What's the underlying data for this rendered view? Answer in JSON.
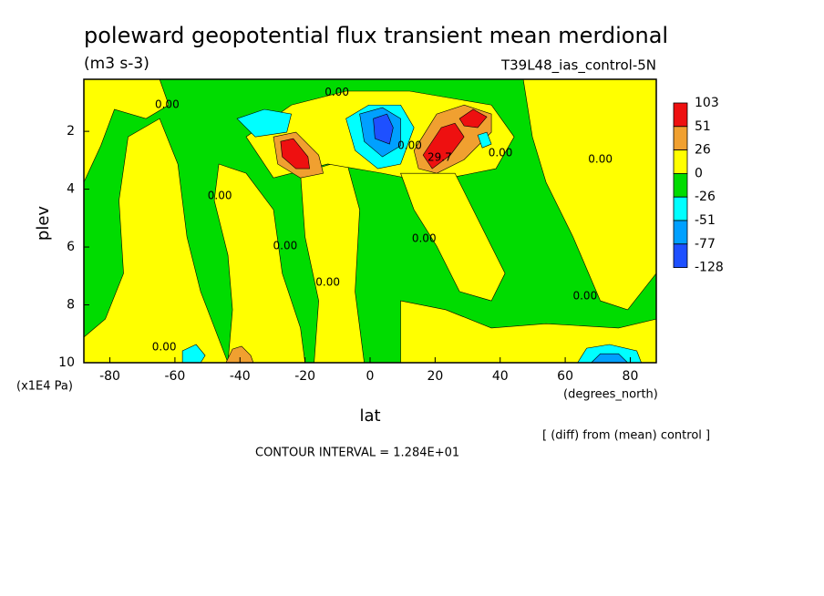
{
  "chart_data": {
    "type": "contour",
    "title": "poleward geopotential flux transient mean merdional",
    "subtitle": "(m3 s-3)",
    "annotation": "T39L48_ias_control-5N",
    "x_label": "lat",
    "x_unit": "(degrees_north)",
    "y_label": "plev",
    "y_unit": "(x1E4 Pa)",
    "note": "[ (diff) from (mean) control ]",
    "contour_interval_text": "CONTOUR INTERVAL = 1.284E+01",
    "xlim": [
      -88,
      88
    ],
    "xticks": [
      -80,
      -60,
      -40,
      -20,
      0,
      20,
      40,
      60,
      80
    ],
    "ylim": [
      10,
      0.2
    ],
    "yticks": [
      2,
      4,
      6,
      8,
      10
    ],
    "colorbar": {
      "levels": [
        103,
        51,
        26,
        0,
        -26,
        -51,
        -77,
        -128
      ],
      "colors": [
        "#ee1010",
        "#f0a030",
        "#ffff00",
        "#00dc00",
        "#00ffff",
        "#00a0ff",
        "#1e50ff"
      ]
    },
    "regions": [
      {
        "level": -26,
        "lat": [
          -88,
          88,
          88,
          -88
        ],
        "plev": [
          0.2,
          0.2,
          10,
          10
        ]
      },
      {
        "level": 0,
        "lat": [
          -88,
          -64.7,
          -61.9,
          -68.9,
          -78.6,
          -82.8,
          -88
        ],
        "plev": [
          0.2,
          0.2,
          1.09,
          1.56,
          1.24,
          2.5,
          3.76
        ]
      },
      {
        "level": 0,
        "lat": [
          -74.4,
          -64.7,
          -59.1,
          -56.3,
          -52.1,
          -43.7,
          -88,
          -88,
          -81.4,
          -75.8,
          -77.2
        ],
        "plev": [
          2.19,
          1.56,
          3.13,
          5.65,
          7.54,
          10,
          10,
          9.12,
          8.49,
          6.91,
          4.39
        ]
      },
      {
        "level": 0,
        "lat": [
          -46.5,
          -38.1,
          -29.7,
          -27.0,
          -21.4,
          -20.0,
          -43.7,
          -42.3,
          -43.7,
          -47.9
        ],
        "plev": [
          3.13,
          3.45,
          4.71,
          6.91,
          8.8,
          10,
          10,
          8.17,
          6.28,
          4.39
        ]
      },
      {
        "level": 0,
        "lat": [
          -21.4,
          -7.4,
          -3.2,
          -4.6,
          -1.8,
          -17.2,
          -15.8,
          -20.0
        ],
        "plev": [
          3.45,
          2.98,
          4.71,
          7.54,
          10,
          10,
          7.86,
          5.65
        ]
      },
      {
        "level": 0,
        "lat": [
          -38.1,
          -24.2,
          -7.4,
          12.2,
          37.3,
          44.3,
          38.7,
          17.7,
          3.8,
          -13.0,
          -29.7
        ],
        "plev": [
          2.19,
          1.09,
          0.61,
          0.61,
          1.09,
          2.19,
          3.29,
          3.76,
          3.45,
          3.13,
          3.61
        ]
      },
      {
        "level": 0,
        "lat": [
          9.4,
          26.1,
          31.7,
          37.3,
          41.5,
          37.3,
          27.5,
          20.5,
          13.5
        ],
        "plev": [
          3.45,
          3.45,
          4.71,
          5.97,
          6.91,
          7.86,
          7.54,
          5.97,
          4.71
        ]
      },
      {
        "level": 0,
        "lat": [
          47.1,
          88,
          88,
          79.2,
          70.8,
          62.4,
          54.1,
          49.9
        ],
        "plev": [
          0.2,
          0.2,
          6.91,
          8.17,
          7.86,
          5.65,
          3.76,
          2.19
        ]
      },
      {
        "level": 0,
        "lat": [
          9.4,
          23.3,
          37.3,
          54.1,
          76.4,
          88,
          88,
          9.4
        ],
        "plev": [
          7.86,
          8.17,
          8.8,
          8.65,
          8.8,
          8.49,
          10,
          10
        ]
      },
      {
        "level": 26,
        "lat": [
          -29.7,
          -22.8,
          -15.8,
          -14.4,
          -21.4,
          -28.4
        ],
        "plev": [
          2.19,
          2.03,
          2.82,
          3.45,
          3.61,
          3.13
        ]
      },
      {
        "level": 51,
        "lat": [
          -27.5,
          -23.6,
          -19.1,
          -18.6,
          -22.8,
          -27.0
        ],
        "plev": [
          2.35,
          2.25,
          2.88,
          3.29,
          3.29,
          2.88
        ]
      },
      {
        "level": 26,
        "lat": [
          13.5,
          20.5,
          28.9,
          37.3,
          37.3,
          28.9,
          20.5,
          14.9
        ],
        "plev": [
          2.66,
          1.4,
          1.09,
          1.4,
          2.03,
          2.98,
          3.45,
          3.29
        ]
      },
      {
        "level": 51,
        "lat": [
          16.3,
          21.9,
          26.1,
          28.9,
          24.7,
          19.1
        ],
        "plev": [
          2.82,
          1.87,
          1.72,
          2.19,
          2.82,
          3.29
        ]
      },
      {
        "level": 51,
        "lat": [
          27.5,
          31.7,
          35.9,
          33.1,
          28.9
        ],
        "plev": [
          1.56,
          1.24,
          1.5,
          1.87,
          1.81
        ]
      },
      {
        "level": 26,
        "lat": [
          -44.3,
          -42.3,
          -39.5,
          -36.7,
          -35.9
        ],
        "plev": [
          10,
          9.53,
          9.43,
          9.75,
          10
        ]
      },
      {
        "level": -51,
        "lat": [
          -40.9,
          -32.5,
          -24.2,
          -25.6,
          -35.3
        ],
        "plev": [
          1.56,
          1.24,
          1.4,
          2.03,
          2.19
        ]
      },
      {
        "level": -51,
        "lat": [
          -7.4,
          -0.4,
          9.4,
          13.5,
          9.4,
          2.4,
          -4.6
        ],
        "plev": [
          1.56,
          1.09,
          1.09,
          1.87,
          3.13,
          3.29,
          2.66
        ]
      },
      {
        "level": -77,
        "lat": [
          -3.2,
          3.8,
          9.4,
          9.4,
          3.8,
          -1.8
        ],
        "plev": [
          1.4,
          1.18,
          1.56,
          2.5,
          2.88,
          2.35
        ]
      },
      {
        "level": -128,
        "lat": [
          1.0,
          5.2,
          7.1,
          6.0,
          1.5
        ],
        "plev": [
          1.56,
          1.4,
          1.87,
          2.44,
          2.25
        ]
      },
      {
        "level": -51,
        "lat": [
          -57.7,
          -53.5,
          -50.7,
          -52.1,
          -57.7
        ],
        "plev": [
          9.59,
          9.37,
          9.75,
          10,
          10
        ]
      },
      {
        "level": -51,
        "lat": [
          63.8,
          66.6,
          73.6,
          82.0,
          83.4
        ],
        "plev": [
          10,
          9.5,
          9.37,
          9.59,
          10
        ]
      },
      {
        "level": -77,
        "lat": [
          68.0,
          70.8,
          76.4,
          79.2
        ],
        "plev": [
          10,
          9.69,
          9.69,
          10
        ]
      },
      {
        "level": -51,
        "lat": [
          33.1,
          35.9,
          37.3,
          34.5
        ],
        "plev": [
          2.13,
          2.03,
          2.44,
          2.57
        ]
      }
    ],
    "contour_labels": [
      {
        "value": 0,
        "label": "0.00",
        "lat": -10.2,
        "plev": 0.65
      },
      {
        "value": 0,
        "label": "0.00",
        "lat": -62.4,
        "plev": 1.09
      },
      {
        "value": 0,
        "label": "0.00",
        "lat": -46.2,
        "plev": 4.24
      },
      {
        "value": 0,
        "label": "0.00",
        "lat": -26.1,
        "plev": 5.97
      },
      {
        "value": 0,
        "label": "0.00",
        "lat": -13.0,
        "plev": 7.23
      },
      {
        "value": 0,
        "label": "0.00",
        "lat": 16.6,
        "plev": 5.72
      },
      {
        "value": 0,
        "label": "0.00",
        "lat": 70.8,
        "plev": 2.98
      },
      {
        "value": 0,
        "label": "0.00",
        "lat": 66.1,
        "plev": 7.7
      },
      {
        "value": 0,
        "label": "0.00",
        "lat": -63.3,
        "plev": 9.46
      },
      {
        "value": 0,
        "label": "0.00",
        "lat": 12.2,
        "plev": 2.5
      },
      {
        "value": 0,
        "label": "0.00",
        "lat": 40.1,
        "plev": 2.76
      },
      {
        "value": 29.7,
        "label": "29.7",
        "lat": 21.4,
        "plev": 2.91
      }
    ]
  }
}
